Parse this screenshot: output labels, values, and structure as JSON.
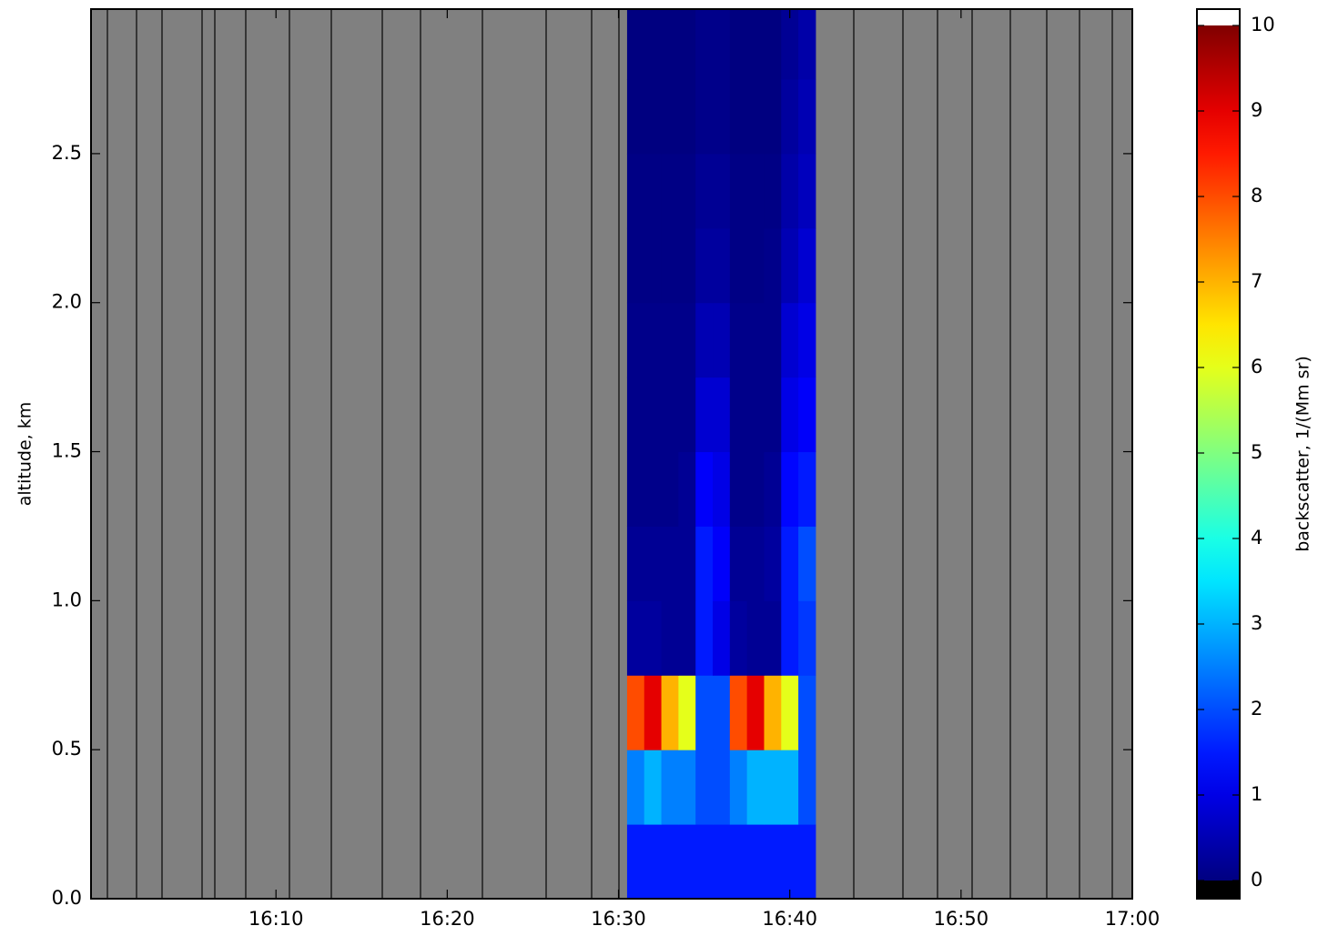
{
  "chart_data": {
    "type": "heatmap",
    "ylabel": "altitude, km",
    "xlim": [
      959.2,
      1020
    ],
    "xticks": [
      {
        "value": 970,
        "label": "16:10"
      },
      {
        "value": 980,
        "label": "16:20"
      },
      {
        "value": 990,
        "label": "16:30"
      },
      {
        "value": 1000,
        "label": "16:40"
      },
      {
        "value": 1010,
        "label": "16:50"
      },
      {
        "value": 1020,
        "label": "17:00"
      }
    ],
    "ylim": [
      0,
      2.985
    ],
    "yticks": [
      {
        "value": 0,
        "label": "0.0"
      },
      0.5,
      {
        "value": 1,
        "label": "1.0"
      },
      1.5,
      {
        "value": 2,
        "label": "2.0"
      },
      2.5
    ],
    "background_color": "#808080",
    "x_edges": [
      990.5,
      991.5,
      992.5,
      993.5,
      994.5,
      995.5,
      996.5,
      997.5,
      998.5,
      999.5,
      1000.5,
      1001.5
    ],
    "y_edges": [
      0,
      0.25,
      0.5,
      0.75,
      1,
      1.25,
      1.5,
      1.75,
      2,
      2.25,
      2.5,
      2.75,
      3
    ],
    "z": [
      [
        1.5,
        1.5,
        1.5,
        1.5,
        1.5,
        1.5,
        1.5,
        1.5,
        1.5,
        1.5,
        1.5
      ],
      [
        2.5,
        3,
        2.5,
        2.5,
        2,
        2,
        2.5,
        3,
        3,
        3,
        2
      ],
      [
        8,
        9,
        7,
        6,
        2,
        2,
        8,
        9,
        7,
        6,
        2
      ],
      [
        0.3,
        0.3,
        0.2,
        0.2,
        1.5,
        1,
        0.3,
        0.2,
        0.2,
        1.5,
        1.8
      ],
      [
        0.2,
        0.2,
        0.2,
        0.2,
        1.5,
        1.2,
        0.2,
        0.2,
        0.3,
        1.5,
        2
      ],
      [
        0.1,
        0.1,
        0.1,
        0.2,
        1.2,
        1,
        0.1,
        0.1,
        0.2,
        1.3,
        1.5
      ],
      [
        0.1,
        0.1,
        0.1,
        0.1,
        0.8,
        0.8,
        0.1,
        0.1,
        0.1,
        1,
        1.2
      ],
      [
        0.1,
        0.1,
        0.1,
        0.1,
        0.5,
        0.5,
        0.1,
        0.1,
        0.1,
        0.8,
        1
      ],
      [
        0.05,
        0.05,
        0.05,
        0.05,
        0.3,
        0.3,
        0.05,
        0.05,
        0.1,
        0.5,
        0.8
      ],
      [
        0.05,
        0.05,
        0.05,
        0.05,
        0.2,
        0.2,
        0.05,
        0.05,
        0.05,
        0.4,
        0.6
      ],
      [
        0,
        0,
        0,
        0,
        0.1,
        0.1,
        0,
        0,
        0,
        0.3,
        0.5
      ],
      [
        0,
        0,
        0,
        0,
        0.1,
        0.1,
        0,
        0,
        0,
        0.2,
        0.4
      ]
    ],
    "colorbar": {
      "label": "backscatter, 1/(Mm sr)",
      "colormap": "jet",
      "clim": [
        0,
        10
      ],
      "ticks": [
        0,
        1,
        2,
        3,
        4,
        5,
        6,
        7,
        8,
        9,
        10
      ],
      "over_color": "#ffffff",
      "under_color": "#000000"
    }
  }
}
